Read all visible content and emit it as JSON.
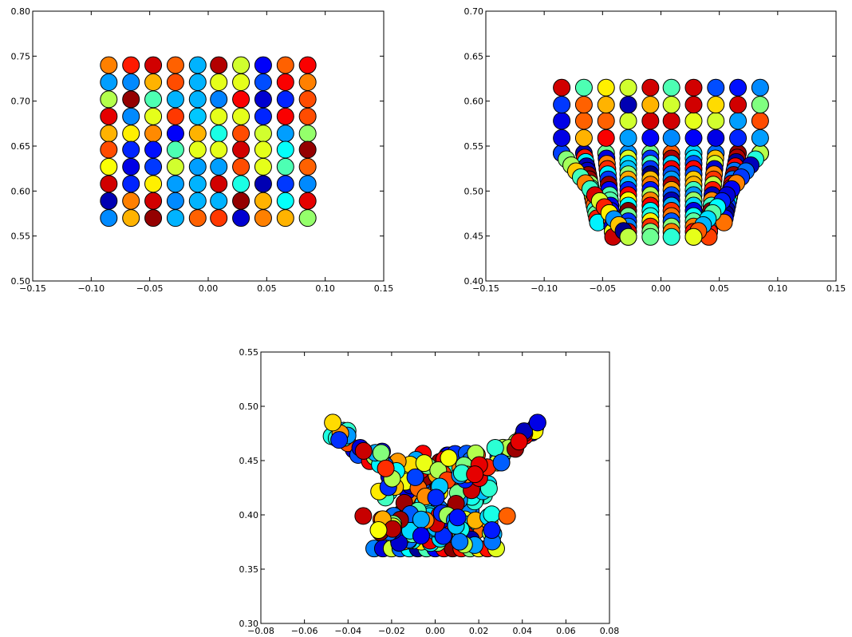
{
  "chart_data": [
    {
      "type": "scatter",
      "title": "",
      "xlabel": "",
      "ylabel": "",
      "xlim": [
        -0.15,
        0.15
      ],
      "ylim": [
        0.5,
        0.8
      ],
      "xticks": [
        "−0.15",
        "−0.10",
        "−0.05",
        "0.00",
        "0.05",
        "0.10",
        "0.15"
      ],
      "yticks": [
        "0.50",
        "0.55",
        "0.60",
        "0.65",
        "0.70",
        "0.75",
        "0.80"
      ],
      "grid": false,
      "legend": "none",
      "colormap": "jet",
      "point_color_scale": "jet",
      "shape": "grid",
      "x": [
        -0.085,
        -0.066,
        -0.047,
        -0.028,
        -0.009,
        0.009,
        0.028,
        0.047,
        0.066,
        0.085
      ],
      "y": [
        0.74,
        0.721,
        0.702,
        0.683,
        0.664,
        0.646,
        0.627,
        0.608,
        0.589,
        0.57
      ],
      "color_values": [
        [
          0.75,
          0.85,
          0.92,
          0.78,
          0.3,
          0.95,
          0.58,
          0.12,
          0.78,
          0.88
        ],
        [
          0.28,
          0.26,
          0.7,
          0.8,
          0.3,
          0.6,
          0.6,
          0.2,
          0.88,
          0.75
        ],
        [
          0.55,
          0.98,
          0.45,
          0.3,
          0.3,
          0.25,
          0.88,
          0.08,
          0.16,
          0.8
        ],
        [
          0.9,
          0.26,
          0.6,
          0.82,
          0.32,
          0.6,
          0.6,
          0.16,
          0.88,
          0.8
        ],
        [
          0.7,
          0.64,
          0.74,
          0.12,
          0.7,
          0.4,
          0.8,
          0.58,
          0.28,
          0.52
        ],
        [
          0.8,
          0.16,
          0.14,
          0.45,
          0.6,
          0.6,
          0.92,
          0.6,
          0.38,
          0.98
        ],
        [
          0.62,
          0.1,
          0.18,
          0.58,
          0.28,
          0.28,
          0.8,
          0.6,
          0.45,
          0.78
        ],
        [
          0.92,
          0.16,
          0.64,
          0.28,
          0.3,
          0.92,
          0.4,
          0.05,
          0.18,
          0.26
        ],
        [
          0.05,
          0.75,
          0.92,
          0.26,
          0.3,
          0.3,
          0.98,
          0.7,
          0.38,
          0.9
        ],
        [
          0.26,
          0.7,
          0.98,
          0.3,
          0.78,
          0.82,
          0.08,
          0.75,
          0.7,
          0.52
        ]
      ]
    },
    {
      "type": "scatter",
      "title": "",
      "xlabel": "",
      "ylabel": "",
      "xlim": [
        -0.15,
        0.15
      ],
      "ylim": [
        0.4,
        0.7
      ],
      "xticks": [
        "−0.15",
        "−0.10",
        "−0.05",
        "0.00",
        "0.05",
        "0.10",
        "0.15"
      ],
      "yticks": [
        "0.40",
        "0.45",
        "0.50",
        "0.55",
        "0.60",
        "0.65",
        "0.70"
      ],
      "grid": false,
      "legend": "none",
      "colormap": "jet",
      "point_color_scale": "jet",
      "shape": "funnel",
      "x": [
        -0.085,
        -0.066,
        -0.047,
        -0.028,
        -0.009,
        0.009,
        0.028,
        0.047,
        0.066,
        0.085
      ],
      "top_rows_y": [
        0.615,
        0.596,
        0.578,
        0.559
      ],
      "bottom_y": [
        0.542,
        0.465,
        0.449,
        0.449,
        0.449,
        0.449,
        0.449,
        0.449,
        0.465,
        0.542
      ],
      "color_values": [
        [
          0.92,
          0.45,
          0.64,
          0.58,
          0.92,
          0.45,
          0.92,
          0.2,
          0.14,
          0.26
        ],
        [
          0.18,
          0.78,
          0.7,
          0.05,
          0.7,
          0.58,
          0.92,
          0.66,
          0.92,
          0.5
        ],
        [
          0.1,
          0.78,
          0.78,
          0.58,
          0.92,
          0.92,
          0.6,
          0.58,
          0.28,
          0.8
        ],
        [
          0.1,
          0.7,
          0.88,
          0.28,
          0.12,
          0.26,
          0.12,
          0.1,
          0.16,
          0.28
        ]
      ]
    },
    {
      "type": "scatter",
      "title": "",
      "xlabel": "",
      "ylabel": "",
      "xlim": [
        -0.08,
        0.08
      ],
      "ylim": [
        0.3,
        0.55
      ],
      "xticks": [
        "−0.08",
        "−0.06",
        "−0.04",
        "−0.02",
        "0.00",
        "0.02",
        "0.04",
        "0.06",
        "0.08"
      ],
      "yticks": [
        "0.30",
        "0.35",
        "0.40",
        "0.45",
        "0.50",
        "0.55"
      ],
      "grid": false,
      "legend": "none",
      "colormap": "jet",
      "point_color_scale": "jet",
      "shape": "butterfly",
      "wing_tips": [
        [
          -0.047,
          0.485
        ],
        [
          0.047,
          0.485
        ]
      ],
      "base_range_x": [
        -0.028,
        0.028
      ],
      "base_y": 0.369,
      "outliers": [
        [
          -0.033,
          0.399
        ],
        [
          0.033,
          0.399
        ]
      ]
    }
  ],
  "palette": {
    "background": "#ffffff",
    "axis": "#000000"
  }
}
